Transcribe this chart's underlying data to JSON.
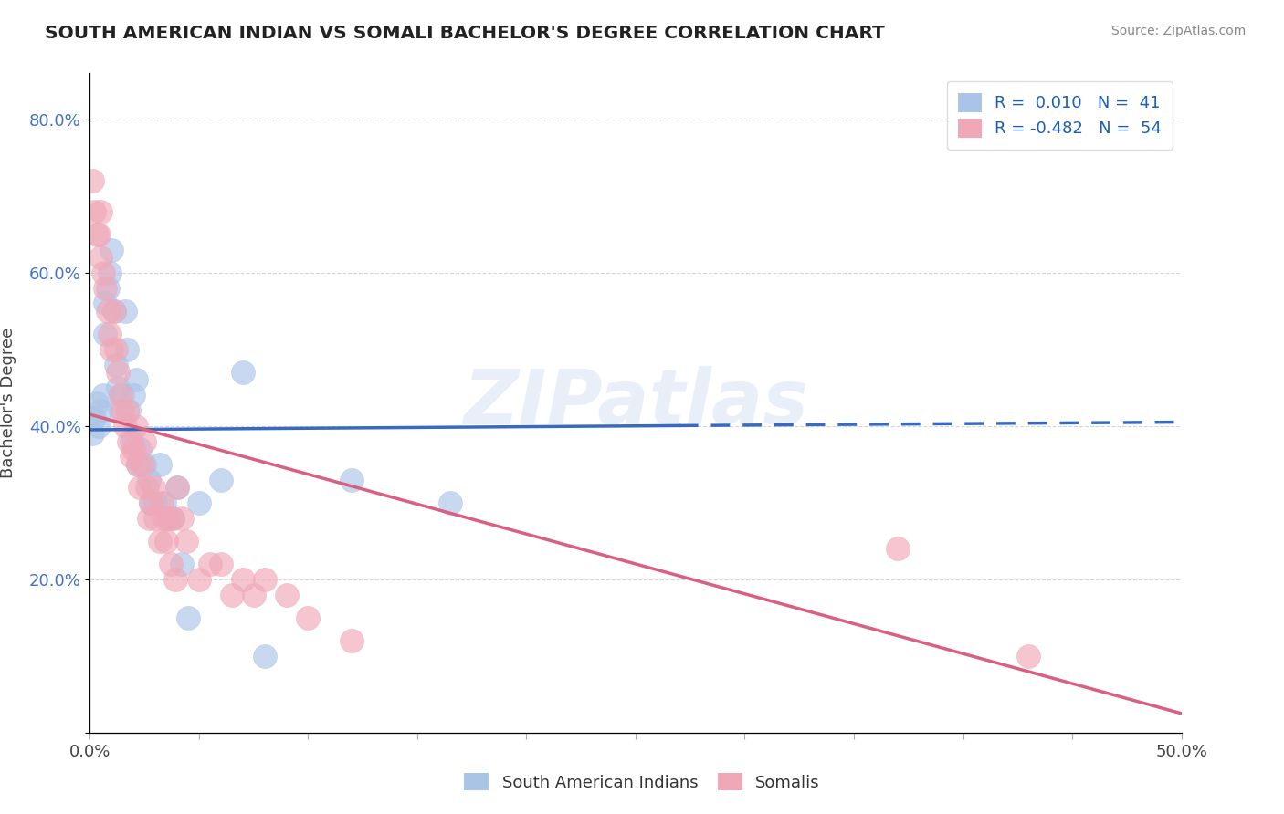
{
  "title": "SOUTH AMERICAN INDIAN VS SOMALI BACHELOR'S DEGREE CORRELATION CHART",
  "source": "Source: ZipAtlas.com",
  "ylabel": "Bachelor's Degree",
  "y_ticks": [
    0.0,
    0.2,
    0.4,
    0.6,
    0.8
  ],
  "y_tick_labels": [
    "",
    "20.0%",
    "40.0%",
    "60.0%",
    "80.0%"
  ],
  "x_range": [
    0.0,
    0.5
  ],
  "y_range": [
    0.0,
    0.86
  ],
  "blue_color": "#aac4e8",
  "pink_color": "#f0a8b8",
  "blue_line_color": "#3a6abf",
  "pink_line_color": "#d96080",
  "R_blue": 0.01,
  "N_blue": 41,
  "R_pink": -0.482,
  "N_pink": 54,
  "blue_line_solid_end": 0.27,
  "blue_line_y_start": 0.395,
  "blue_line_y_end": 0.405,
  "pink_line_y_start": 0.415,
  "pink_line_y_end": 0.025,
  "blue_scatter_x": [
    0.001,
    0.002,
    0.003,
    0.004,
    0.005,
    0.006,
    0.007,
    0.007,
    0.008,
    0.009,
    0.01,
    0.011,
    0.012,
    0.013,
    0.014,
    0.015,
    0.016,
    0.017,
    0.018,
    0.019,
    0.02,
    0.021,
    0.022,
    0.023,
    0.025,
    0.027,
    0.028,
    0.03,
    0.032,
    0.034,
    0.036,
    0.038,
    0.04,
    0.042,
    0.045,
    0.05,
    0.06,
    0.07,
    0.08,
    0.12,
    0.165
  ],
  "blue_scatter_y": [
    0.39,
    0.41,
    0.43,
    0.4,
    0.42,
    0.44,
    0.52,
    0.56,
    0.58,
    0.6,
    0.63,
    0.55,
    0.48,
    0.45,
    0.42,
    0.44,
    0.55,
    0.5,
    0.42,
    0.38,
    0.44,
    0.46,
    0.35,
    0.37,
    0.35,
    0.33,
    0.3,
    0.3,
    0.35,
    0.3,
    0.28,
    0.28,
    0.32,
    0.22,
    0.15,
    0.3,
    0.33,
    0.47,
    0.1,
    0.33,
    0.3
  ],
  "pink_scatter_x": [
    0.001,
    0.002,
    0.003,
    0.004,
    0.005,
    0.005,
    0.006,
    0.007,
    0.008,
    0.009,
    0.01,
    0.011,
    0.012,
    0.013,
    0.014,
    0.015,
    0.016,
    0.017,
    0.018,
    0.019,
    0.02,
    0.021,
    0.022,
    0.023,
    0.024,
    0.025,
    0.026,
    0.027,
    0.028,
    0.029,
    0.03,
    0.032,
    0.033,
    0.034,
    0.035,
    0.036,
    0.037,
    0.038,
    0.039,
    0.04,
    0.042,
    0.044,
    0.05,
    0.055,
    0.06,
    0.065,
    0.07,
    0.075,
    0.08,
    0.09,
    0.1,
    0.12,
    0.37,
    0.43
  ],
  "pink_scatter_y": [
    0.72,
    0.68,
    0.65,
    0.65,
    0.62,
    0.68,
    0.6,
    0.58,
    0.55,
    0.52,
    0.5,
    0.55,
    0.5,
    0.47,
    0.44,
    0.42,
    0.4,
    0.42,
    0.38,
    0.36,
    0.37,
    0.4,
    0.35,
    0.32,
    0.35,
    0.38,
    0.32,
    0.28,
    0.3,
    0.32,
    0.28,
    0.25,
    0.3,
    0.28,
    0.25,
    0.28,
    0.22,
    0.28,
    0.2,
    0.32,
    0.28,
    0.25,
    0.2,
    0.22,
    0.22,
    0.18,
    0.2,
    0.18,
    0.2,
    0.18,
    0.15,
    0.12,
    0.24,
    0.1
  ],
  "watermark_text": "ZIPatlas",
  "grid_color": "#cccccc",
  "grid_alpha": 0.8
}
